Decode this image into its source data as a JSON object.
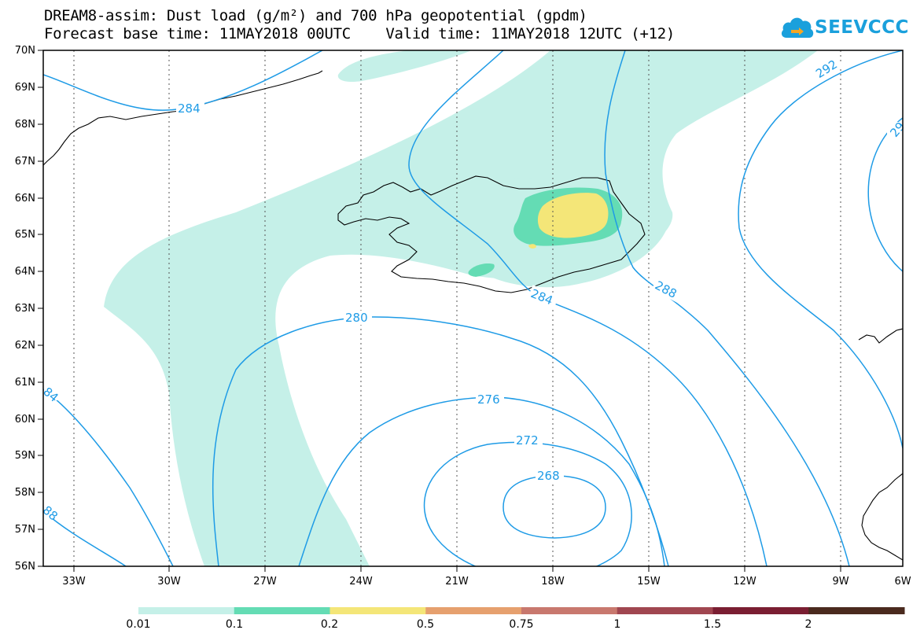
{
  "title": {
    "line1": "DREAM8-assim: Dust load (g/m²) and 700 hPa geopotential (gpdm)",
    "line2": "Forecast base time: 11MAY2018 00UTC    Valid time: 11MAY2018 12UTC (+12)"
  },
  "logo": {
    "text": "SEEVCCC"
  },
  "map": {
    "lat_labels": [
      "70N",
      "69N",
      "68N",
      "67N",
      "66N",
      "65N",
      "64N",
      "63N",
      "62N",
      "61N",
      "60N",
      "59N",
      "58N",
      "57N",
      "56N"
    ],
    "lon_labels": [
      "33W",
      "30W",
      "27W",
      "24W",
      "21W",
      "18W",
      "15W",
      "12W",
      "9W",
      "6W"
    ],
    "contour_labels": [
      "284",
      "292",
      "29",
      "288",
      "284",
      "280",
      "276",
      "272",
      "268",
      "84",
      "88"
    ],
    "contour_color": "#1e9be6",
    "coast_color": "#000000"
  },
  "colorbar": {
    "labels": [
      "0.01",
      "0.1",
      "0.2",
      "0.5",
      "0.75",
      "1",
      "1.5",
      "2"
    ],
    "colors": [
      "#c5f0e8",
      "#64dcb4",
      "#f4e678",
      "#e6a06e",
      "#c8786e",
      "#a04650",
      "#7a1e32",
      "#4a2a1e",
      "#9a6aa0"
    ]
  }
}
